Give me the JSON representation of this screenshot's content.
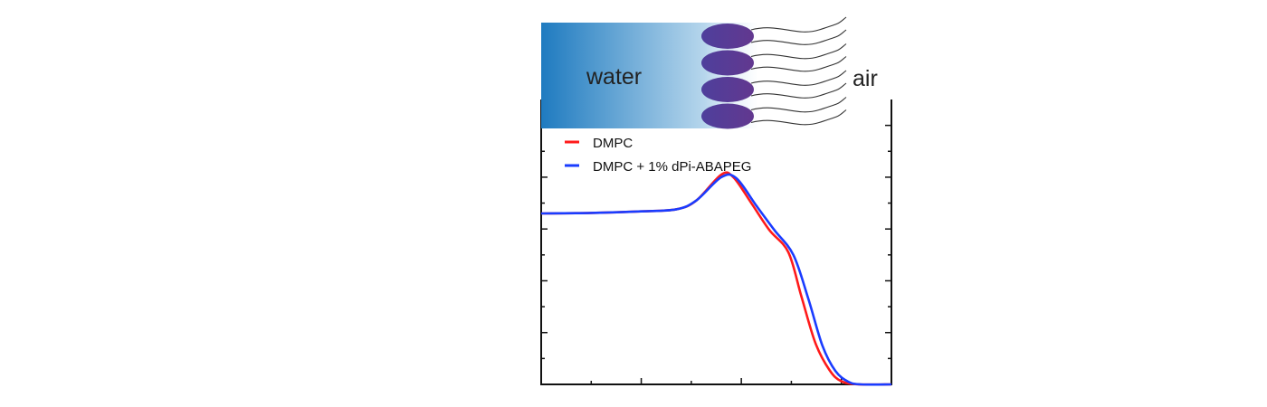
{
  "diagram": {
    "left_label": "water",
    "right_label": "air",
    "water_color_dark": "#1f7bc0",
    "headgroup_color": "#5b3a98",
    "headgroup_count": 4
  },
  "chart_data": {
    "type": "line",
    "title": "",
    "xlabel": "",
    "ylabel": "",
    "xlim": [
      0,
      3.5
    ],
    "ylim": [
      0,
      5.5
    ],
    "grid": false,
    "legend_position": "top-left",
    "series": [
      {
        "name": "DMPC",
        "color": "#ff1a1a",
        "x": [
          0,
          0.5,
          1.0,
          1.35,
          1.55,
          1.8,
          1.92,
          2.1,
          2.28,
          2.47,
          2.6,
          2.74,
          2.88,
          3.0,
          3.18,
          3.5
        ],
        "y": [
          3.3,
          3.31,
          3.34,
          3.38,
          3.55,
          4.05,
          4.0,
          3.5,
          2.98,
          2.55,
          1.7,
          0.8,
          0.28,
          0.06,
          0.0,
          0.0
        ]
      },
      {
        "name": "DMPC + 1% dPi-ABAPEG",
        "color": "#1a3cff",
        "x": [
          0,
          0.5,
          1.0,
          1.35,
          1.55,
          1.8,
          1.95,
          2.15,
          2.33,
          2.52,
          2.67,
          2.81,
          2.94,
          3.07,
          3.2,
          3.5
        ],
        "y": [
          3.3,
          3.31,
          3.34,
          3.38,
          3.55,
          4.0,
          3.98,
          3.45,
          2.98,
          2.5,
          1.65,
          0.75,
          0.26,
          0.05,
          0.0,
          0.0
        ]
      }
    ]
  }
}
